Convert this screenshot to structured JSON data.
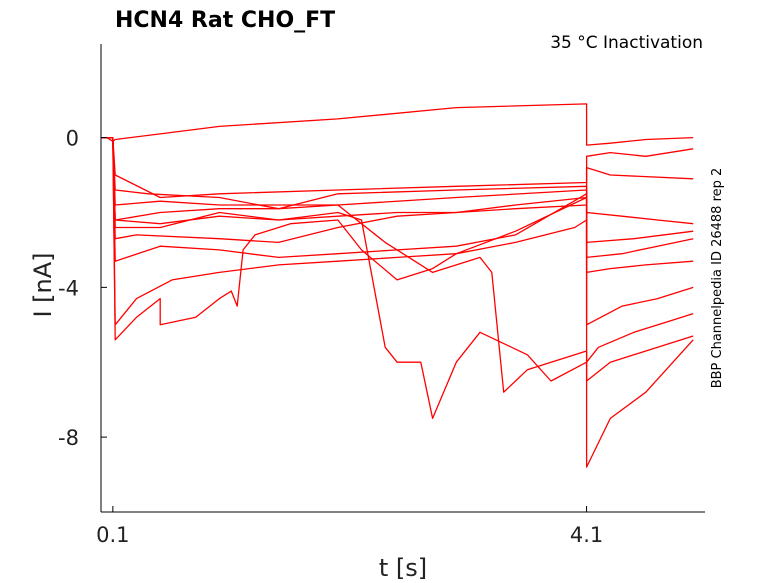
{
  "chart_data": {
    "type": "line",
    "title": "HCN4  Rat  CHO_FT",
    "subtitle": "35 °C  Inactivation",
    "side_label": "BBP Channelpedia ID 26488 rep 2",
    "xlabel": "t [s]",
    "ylabel": "I [nA]",
    "xlim": [
      0.0,
      5.1
    ],
    "ylim": [
      -10.0,
      2.5
    ],
    "xticks": [
      {
        "value": 0.1,
        "label": "0.1"
      },
      {
        "value": 4.1,
        "label": "4.1"
      }
    ],
    "yticks": [
      {
        "value": 0,
        "label": "0"
      },
      {
        "value": -4,
        "label": "-4"
      },
      {
        "value": -8,
        "label": "-8"
      }
    ],
    "grid": false,
    "color": "#ff0000",
    "series": [
      {
        "x": [
          0.0,
          0.05,
          0.1,
          0.12,
          0.5,
          1.0,
          2.0,
          3.0,
          4.1,
          4.1,
          4.3,
          4.6,
          5.0
        ],
        "y": [
          0.0,
          0.0,
          -0.1,
          -0.05,
          0.1,
          0.3,
          0.5,
          0.8,
          0.9,
          -0.2,
          -0.15,
          -0.05,
          0.0
        ]
      },
      {
        "x": [
          0.0,
          0.1,
          0.12,
          0.5,
          1.0,
          2.0,
          3.0,
          4.1,
          4.1,
          4.3,
          4.6,
          5.0
        ],
        "y": [
          0.0,
          0.0,
          -1.0,
          -1.6,
          -1.5,
          -1.4,
          -1.3,
          -1.2,
          -0.5,
          -0.4,
          -0.5,
          -0.3
        ]
      },
      {
        "x": [
          0.0,
          0.1,
          0.12,
          0.4,
          1.0,
          1.5,
          2.0,
          3.0,
          4.1,
          4.1,
          4.4,
          4.7,
          5.0
        ],
        "y": [
          0.0,
          0.0,
          -1.4,
          -1.5,
          -1.6,
          -1.9,
          -1.5,
          -1.4,
          -1.3,
          -2.0,
          -2.1,
          -2.2,
          -2.3
        ]
      },
      {
        "x": [
          0.0,
          0.1,
          0.12,
          0.5,
          1.0,
          2.0,
          3.0,
          4.1,
          4.1,
          4.5,
          5.0
        ],
        "y": [
          0.0,
          0.0,
          -1.8,
          -1.7,
          -1.8,
          -1.8,
          -1.6,
          -1.4,
          -2.8,
          -2.7,
          -2.5
        ]
      },
      {
        "x": [
          0.0,
          0.1,
          0.12,
          0.5,
          1.0,
          1.5,
          2.0,
          2.5,
          3.0,
          3.5,
          4.1,
          4.1,
          4.4,
          4.7,
          5.0
        ],
        "y": [
          0.0,
          0.0,
          -2.2,
          -2.3,
          -2.1,
          -2.2,
          -2.1,
          -2.0,
          -2.0,
          -1.8,
          -1.6,
          -3.2,
          -3.1,
          -2.9,
          -2.7
        ]
      },
      {
        "x": [
          0.0,
          0.1,
          0.12,
          0.3,
          1.0,
          1.5,
          2.0,
          2.5,
          3.0,
          3.5,
          4.1,
          4.1,
          4.3,
          5.0
        ],
        "y": [
          0.0,
          0.0,
          -2.7,
          -2.6,
          -2.7,
          -2.8,
          -2.4,
          -2.1,
          -2.0,
          -1.9,
          -1.8,
          -0.8,
          -1.0,
          -1.1
        ]
      },
      {
        "x": [
          0.0,
          0.1,
          0.12,
          0.5,
          1.0,
          1.5,
          2.0,
          2.5,
          3.0,
          3.5,
          4.1,
          4.1,
          4.3,
          4.6,
          5.0
        ],
        "y": [
          0.0,
          0.0,
          -3.3,
          -2.9,
          -3.0,
          -3.2,
          -3.1,
          -3.0,
          -2.9,
          -2.6,
          -1.5,
          -3.6,
          -3.5,
          -3.4,
          -3.3
        ]
      },
      {
        "x": [
          0.0,
          0.1,
          0.12,
          0.3,
          0.6,
          1.0,
          1.5,
          2.0,
          2.5,
          3.0,
          3.5,
          4.1,
          4.1,
          4.4,
          4.7,
          5.0
        ],
        "y": [
          0.0,
          0.0,
          -5.0,
          -4.3,
          -3.8,
          -3.6,
          -3.4,
          -3.3,
          -3.2,
          -3.1,
          -2.5,
          -1.6,
          -5.0,
          -4.5,
          -4.3,
          -4.0
        ]
      },
      {
        "x": [
          0.0,
          0.1,
          0.12,
          0.3,
          0.5,
          0.5,
          0.8,
          1.0,
          1.1,
          1.15,
          1.2,
          1.3,
          1.6,
          2.0,
          2.2,
          2.5,
          2.8,
          3.0,
          3.5,
          4.0,
          4.1,
          4.1,
          4.2,
          4.5,
          4.8,
          5.0
        ],
        "y": [
          0.0,
          0.0,
          -5.4,
          -4.8,
          -4.3,
          -5.0,
          -4.8,
          -4.3,
          -4.1,
          -4.5,
          -3.0,
          -2.6,
          -2.3,
          -2.2,
          -3.0,
          -3.8,
          -3.5,
          -3.1,
          -2.8,
          -2.4,
          -2.2,
          -6.0,
          -5.6,
          -5.2,
          -4.9,
          -4.7
        ]
      },
      {
        "x": [
          0.0,
          0.1,
          0.12,
          0.5,
          1.0,
          1.5,
          2.0,
          2.2,
          2.4,
          2.5,
          2.7,
          2.8,
          3.0,
          3.2,
          3.6,
          3.8,
          4.1,
          4.1,
          4.3,
          4.6,
          5.0
        ],
        "y": [
          0.0,
          0.0,
          -2.4,
          -2.4,
          -2.0,
          -2.2,
          -2.0,
          -2.2,
          -5.6,
          -6.0,
          -6.0,
          -7.5,
          -6.0,
          -5.2,
          -5.8,
          -6.5,
          -6.0,
          -8.8,
          -7.5,
          -6.8,
          -5.4
        ]
      },
      {
        "x": [
          0.0,
          0.1,
          0.12,
          0.5,
          1.0,
          1.5,
          2.0,
          2.4,
          2.8,
          3.0,
          3.2,
          3.3,
          3.4,
          3.6,
          3.9,
          4.1,
          4.1,
          4.3,
          4.6,
          5.0
        ],
        "y": [
          0.0,
          0.0,
          -2.2,
          -2.0,
          -1.9,
          -1.9,
          -1.8,
          -2.8,
          -3.6,
          -3.4,
          -3.2,
          -3.6,
          -6.8,
          -6.2,
          -5.9,
          -5.7,
          -6.5,
          -6.0,
          -5.7,
          -5.3
        ]
      }
    ]
  }
}
